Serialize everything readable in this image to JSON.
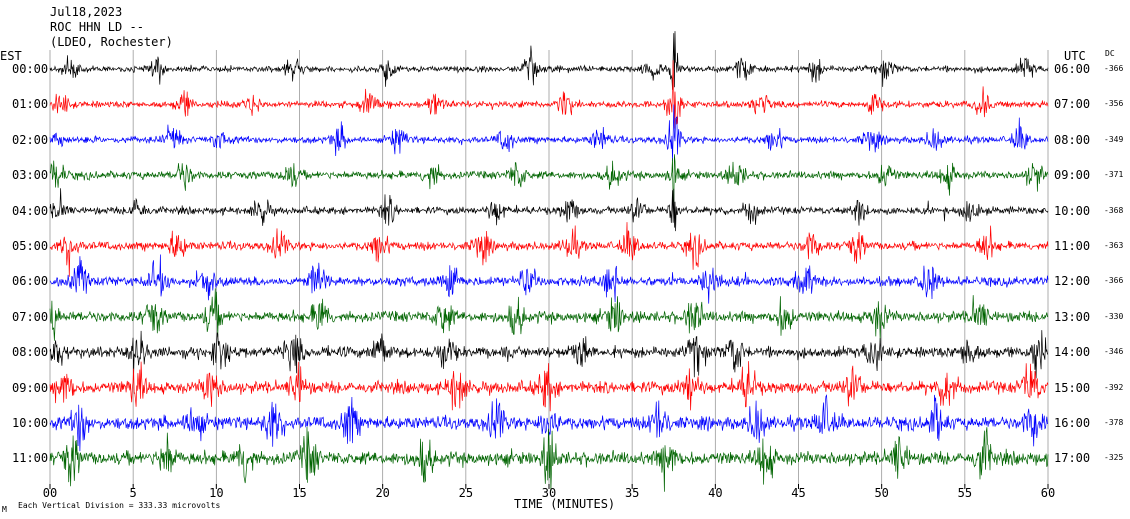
{
  "header": {
    "date": "Jul18,2023",
    "station": "ROC HHN LD --",
    "network": "(LDEO, Rochester)"
  },
  "left_axis_label": "EST",
  "right_axis_label": "UTC",
  "dc_label": "DC",
  "footer": {
    "mark": "M",
    "scale_text": "Each Vertical Division = 333.33 microvolts"
  },
  "chart_data": {
    "type": "line",
    "xlabel": "TIME (MINUTES)",
    "xlim": [
      0,
      60
    ],
    "x_ticks": [
      0,
      5,
      10,
      15,
      20,
      25,
      30,
      35,
      40,
      45,
      50,
      55,
      60
    ],
    "x_tick_labels": [
      "00",
      "5",
      "10",
      "15",
      "20",
      "25",
      "30",
      "35",
      "40",
      "45",
      "50",
      "55",
      "60"
    ],
    "grid": true,
    "rows": [
      {
        "est": "00:00",
        "utc": "06:00",
        "dc": "-366",
        "color": "#000000",
        "amplitude": 1.0
      },
      {
        "est": "01:00",
        "utc": "07:00",
        "dc": "-356",
        "color": "#ff0000",
        "amplitude": 1.1
      },
      {
        "est": "02:00",
        "utc": "08:00",
        "dc": "-349",
        "color": "#0000ff",
        "amplitude": 1.1
      },
      {
        "est": "03:00",
        "utc": "09:00",
        "dc": "-371",
        "color": "#006400",
        "amplitude": 1.3
      },
      {
        "est": "04:00",
        "utc": "10:00",
        "dc": "-368",
        "color": "#000000",
        "amplitude": 1.2
      },
      {
        "est": "05:00",
        "utc": "11:00",
        "dc": "-363",
        "color": "#ff0000",
        "amplitude": 1.4
      },
      {
        "est": "06:00",
        "utc": "12:00",
        "dc": "-366",
        "color": "#0000ff",
        "amplitude": 1.6
      },
      {
        "est": "07:00",
        "utc": "13:00",
        "dc": "-330",
        "color": "#006400",
        "amplitude": 1.8
      },
      {
        "est": "08:00",
        "utc": "14:00",
        "dc": "-346",
        "color": "#000000",
        "amplitude": 1.8
      },
      {
        "est": "09:00",
        "utc": "15:00",
        "dc": "-392",
        "color": "#ff0000",
        "amplitude": 2.0
      },
      {
        "est": "10:00",
        "utc": "16:00",
        "dc": "-378",
        "color": "#0000ff",
        "amplitude": 2.1
      },
      {
        "est": "11:00",
        "utc": "17:00",
        "dc": "-325",
        "color": "#006400",
        "amplitude": 2.2
      }
    ],
    "event_minute": 37.5
  }
}
